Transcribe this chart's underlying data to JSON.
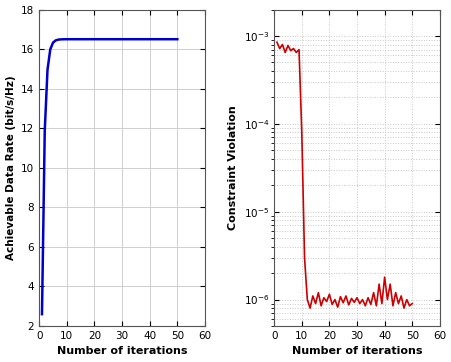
{
  "left_plot": {
    "xlabel": "Number of iterations",
    "ylabel": "Achievable Data Rate (bit/s/Hz)",
    "xlim": [
      0,
      60
    ],
    "ylim": [
      2,
      18
    ],
    "yticks": [
      2,
      4,
      6,
      8,
      10,
      12,
      14,
      16,
      18
    ],
    "xticks": [
      0,
      10,
      20,
      30,
      40,
      50,
      60
    ],
    "line_color": "#0000cc",
    "grid_color": "#c8c8c8",
    "start_val": 2.6,
    "converge_val": 16.5,
    "rate": 1.1
  },
  "right_plot": {
    "xlabel": "Number of iterations",
    "ylabel": "Constraint Violation",
    "xlim": [
      0,
      60
    ],
    "ylim_min": 5e-07,
    "ylim_max": 0.002,
    "xticks": [
      0,
      10,
      20,
      30,
      40,
      50,
      60
    ],
    "yticks_major": [
      1e-06,
      1e-05,
      0.0001,
      0.001
    ],
    "line_color": "#cc0000",
    "grid_color": "#c8c8c8"
  },
  "fig_width": 4.52,
  "fig_height": 3.62,
  "dpi": 100
}
